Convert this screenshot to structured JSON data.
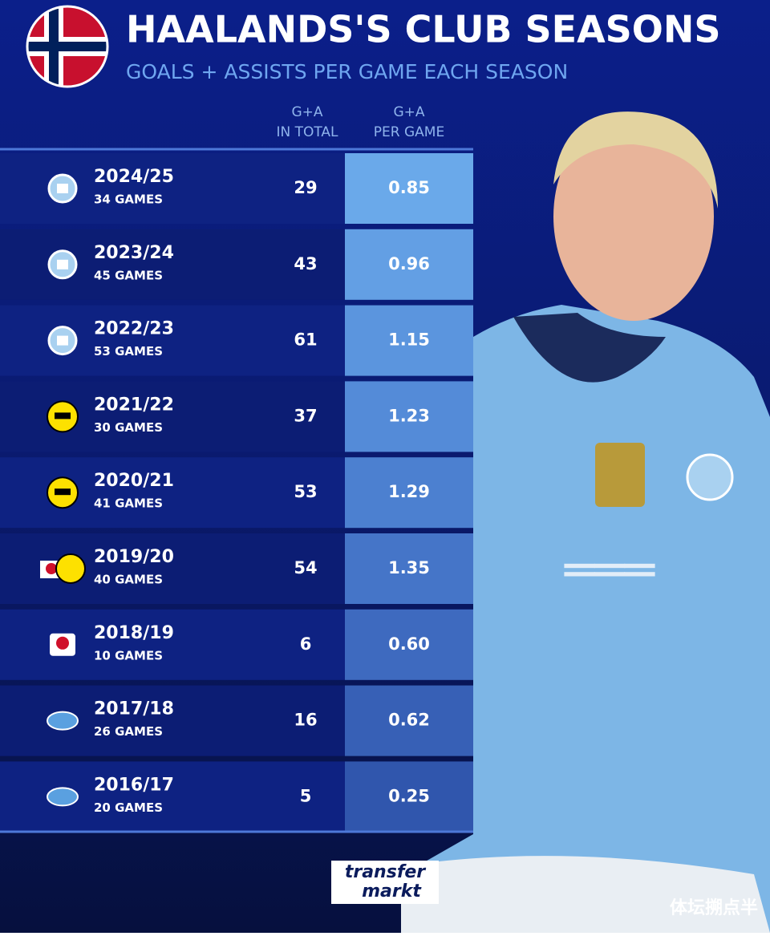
{
  "header": {
    "title": "HAALANDS'S CLUB SEASONS",
    "subtitle": "GOALS + ASSISTS PER GAME EACH SEASON"
  },
  "table": {
    "columns": [
      [
        "G+A",
        "IN TOTAL"
      ],
      [
        "G+A",
        "PER GAME"
      ]
    ],
    "rows": [
      {
        "season": "2024/25",
        "games": "34 GAMES",
        "total": "29",
        "per_game": "0.85"
      },
      {
        "season": "2023/24",
        "games": "45 GAMES",
        "total": "43",
        "per_game": "0.96"
      },
      {
        "season": "2022/23",
        "games": "53 GAMES",
        "total": "61",
        "per_game": "1.15"
      },
      {
        "season": "2021/22",
        "games": "30 GAMES",
        "total": "37",
        "per_game": "1.23"
      },
      {
        "season": "2020/21",
        "games": "41 GAMES",
        "total": "53",
        "per_game": "1.29"
      },
      {
        "season": "2019/20",
        "games": "40 GAMES",
        "total": "54",
        "per_game": "1.35"
      },
      {
        "season": "2018/19",
        "games": "10 GAMES",
        "total": "6",
        "per_game": "0.60"
      },
      {
        "season": "2017/18",
        "games": "26 GAMES",
        "total": "16",
        "per_game": "0.62"
      },
      {
        "season": "2016/17",
        "games": "20 GAMES",
        "total": "5",
        "per_game": "0.25"
      }
    ]
  },
  "brand": {
    "line1": "transfer",
    "line2": "markt"
  },
  "watermark": "体坛搠点半"
}
